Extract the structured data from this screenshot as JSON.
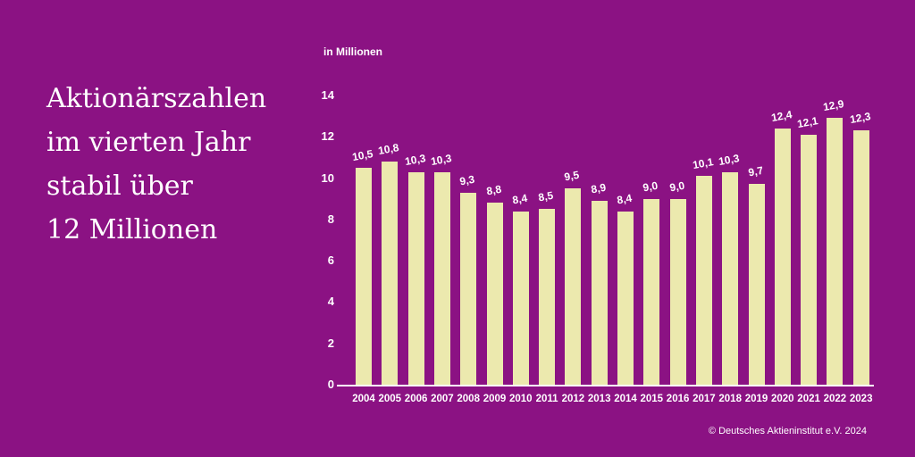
{
  "page": {
    "background_color": "#8B1283",
    "text_color": "#FFFFFF"
  },
  "title": {
    "lines": [
      "Aktionärszahlen",
      "im vierten Jahr",
      "stabil über",
      "12 Millionen"
    ]
  },
  "footer": {
    "copyright": "© Deutsches Aktieninstitut e.V. 2024"
  },
  "chart_data": {
    "type": "bar",
    "title": "Aktionärszahlen im vierten Jahr stabil über 12 Millionen",
    "unit_label": "in Millionen",
    "categories": [
      "2004",
      "2005",
      "2006",
      "2007",
      "2008",
      "2009",
      "2010",
      "2011",
      "2012",
      "2013",
      "2014",
      "2015",
      "2016",
      "2017",
      "2018",
      "2019",
      "2020",
      "2021",
      "2022",
      "2023"
    ],
    "values": [
      10.5,
      10.8,
      10.3,
      10.3,
      9.3,
      8.8,
      8.4,
      8.5,
      9.5,
      8.9,
      8.4,
      9.0,
      9.0,
      10.1,
      10.3,
      9.7,
      12.4,
      12.1,
      12.9,
      12.3
    ],
    "value_labels": [
      "10,5",
      "10,8",
      "10,3",
      "10,3",
      "9,3",
      "8,8",
      "8,4",
      "8,5",
      "9,5",
      "8,9",
      "8,4",
      "9,0",
      "9,0",
      "10,1",
      "10,3",
      "9,7",
      "12,4",
      "12,1",
      "12,9",
      "12,3"
    ],
    "xlabel": "",
    "ylabel": "in Millionen",
    "ylim": [
      0,
      14
    ],
    "yticks": [
      0,
      2,
      4,
      6,
      8,
      10,
      12,
      14
    ],
    "grid": false,
    "legend": false,
    "bar_color": "#ECE9AE",
    "label_color": "#FFFFFF",
    "axis_color": "#FFFFFF"
  }
}
